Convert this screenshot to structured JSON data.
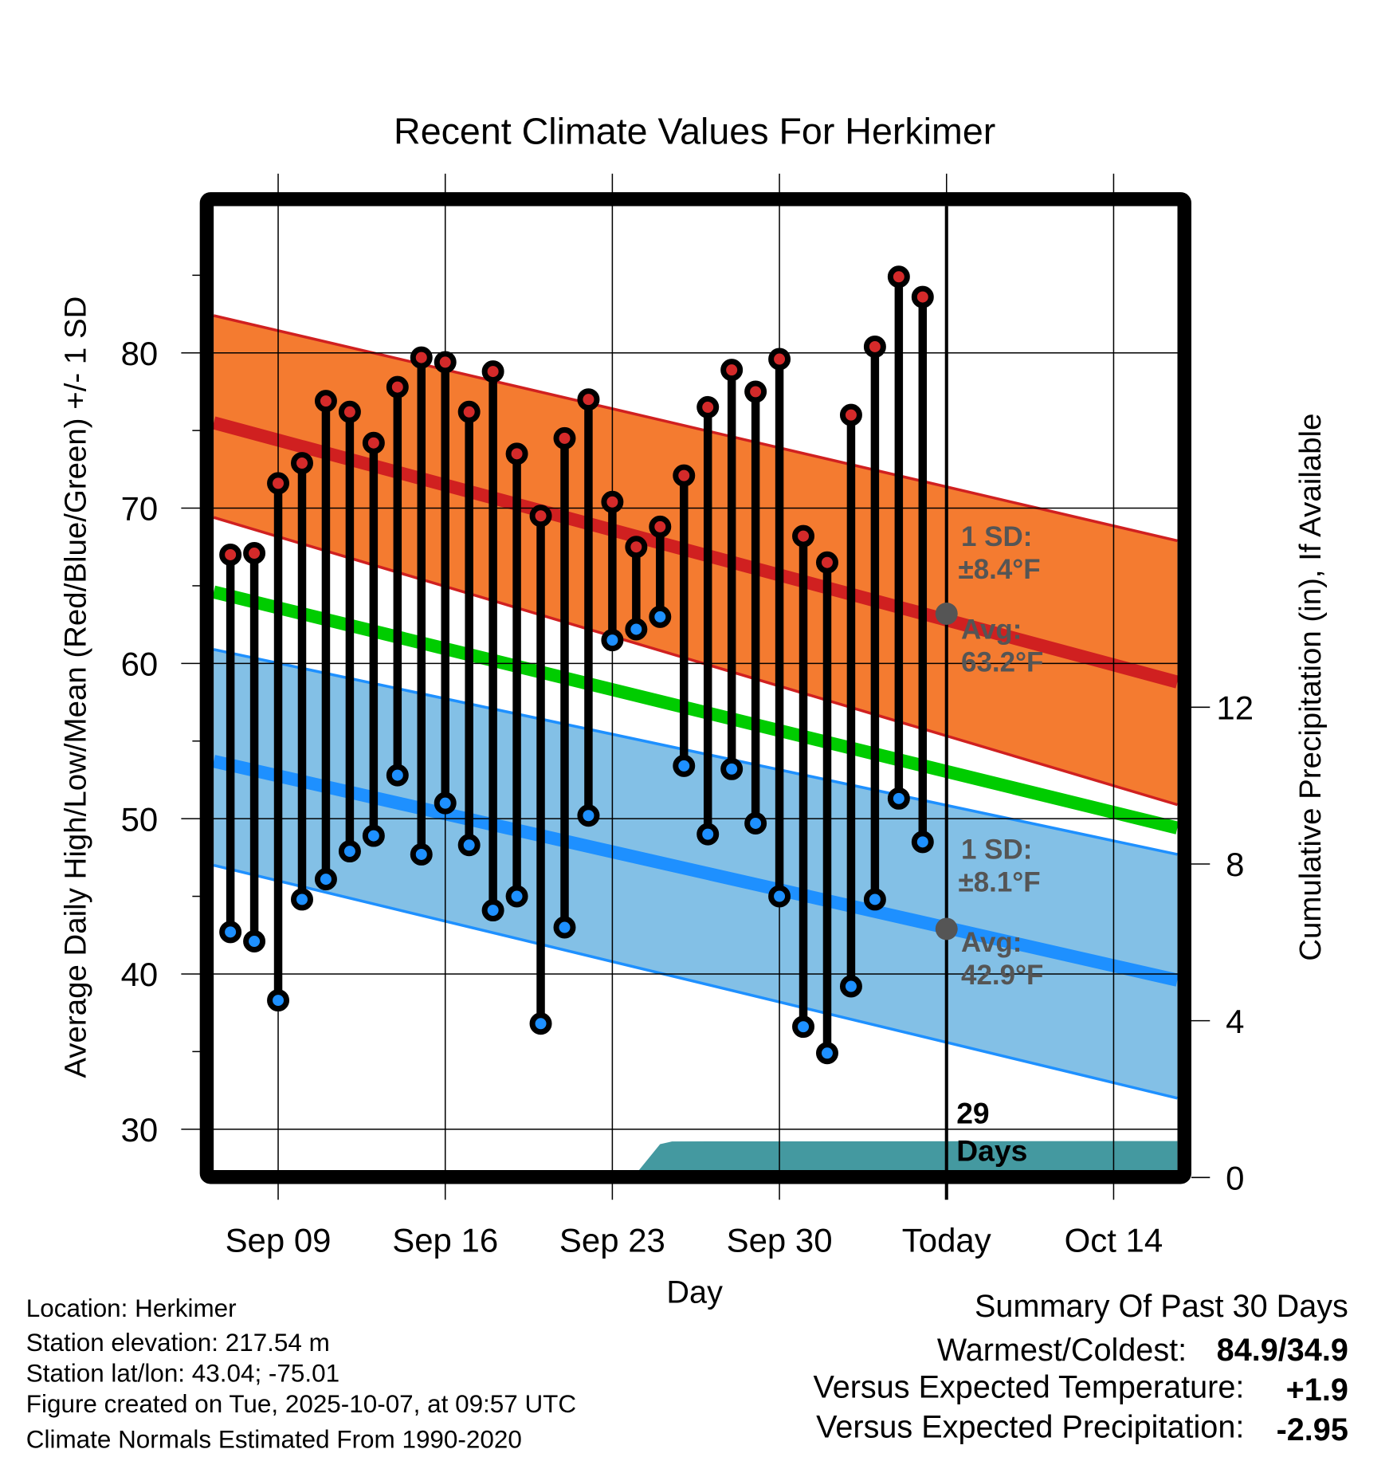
{
  "chart_data": {
    "type": "line",
    "title": "Recent Climate Values For Herkimer",
    "xlabel": "Day",
    "ylabel": "Average Daily High/Low/Mean (Red/Blue/Green) +/- 1 SD",
    "y2label": "Cumulative Precipitation (in), If Available",
    "ylim": [
      27.25,
      89.45
    ],
    "y2lim": [
      0,
      24.6
    ],
    "xlim_days": [
      -0.7,
      39.67
    ],
    "x_origin": "Sep 07",
    "x_ticks": [
      {
        "day": 2,
        "label": "Sep 09"
      },
      {
        "day": 9,
        "label": "Sep 16"
      },
      {
        "day": 16,
        "label": "Sep 23"
      },
      {
        "day": 23,
        "label": "Sep 30"
      },
      {
        "day": 30,
        "label": "Today"
      },
      {
        "day": 37,
        "label": "Oct 14"
      }
    ],
    "y_ticks": [
      30,
      40,
      50,
      60,
      70,
      80
    ],
    "y2_ticks": [
      0,
      4,
      8,
      12
    ],
    "dates": [
      "Sep 07",
      "Sep 08",
      "Sep 09",
      "Sep 10",
      "Sep 11",
      "Sep 12",
      "Sep 13",
      "Sep 14",
      "Sep 15",
      "Sep 16",
      "Sep 17",
      "Sep 18",
      "Sep 19",
      "Sep 20",
      "Sep 21",
      "Sep 22",
      "Sep 23",
      "Sep 24",
      "Sep 25",
      "Sep 26",
      "Sep 27",
      "Sep 28",
      "Sep 29",
      "Sep 30",
      "Oct 01",
      "Oct 02",
      "Oct 03",
      "Oct 04",
      "Oct 05",
      "Oct 06"
    ],
    "series": [
      {
        "name": "Daily High",
        "color": "#D42A2A",
        "values": [
          67.0,
          67.1,
          71.6,
          72.9,
          76.9,
          76.2,
          74.2,
          77.8,
          79.7,
          79.4,
          76.2,
          78.8,
          73.5,
          69.5,
          74.5,
          77.0,
          70.4,
          67.5,
          68.8,
          72.1,
          76.5,
          78.9,
          77.5,
          79.6,
          68.2,
          66.5,
          76.0,
          80.4,
          84.9,
          83.6
        ]
      },
      {
        "name": "Daily Low",
        "color": "#1E90FF",
        "values": [
          42.7,
          42.1,
          38.3,
          44.8,
          46.1,
          47.9,
          48.9,
          52.8,
          47.7,
          51.0,
          48.3,
          44.1,
          45.0,
          36.8,
          43.0,
          50.2,
          61.5,
          62.2,
          63.0,
          53.4,
          49.0,
          53.2,
          49.7,
          45.0,
          36.6,
          34.9,
          39.2,
          44.8,
          51.3,
          48.5
        ]
      }
    ],
    "normals": {
      "x_days": [
        -0.7,
        39.67
      ],
      "high_avg": [
        75.5,
        58.8
      ],
      "high_upper": [
        82.4,
        67.9
      ],
      "high_lower": [
        69.4,
        50.9
      ],
      "mean_avg": [
        64.6,
        49.4
      ],
      "low_avg": [
        53.7,
        39.6
      ],
      "low_upper": [
        60.9,
        47.7
      ],
      "low_lower": [
        47.0,
        32.0
      ]
    },
    "precip": {
      "x_days": [
        -0.7,
        16,
        17,
        18,
        18.5,
        39.67
      ],
      "values": [
        0,
        0,
        0.1,
        0.85,
        0.92,
        0.93
      ]
    },
    "colors": {
      "high_band": "#F47B30",
      "high_line": "#D02020",
      "mean_line": "#00CC00",
      "low_band": "#83C0E6",
      "low_line": "#1E90FF",
      "precip": "#4499A0"
    },
    "annotations": {
      "high_sd_line1": "1 SD:",
      "high_sd_line2": "±8.4°F",
      "high_avg_line1": "Avg:",
      "high_avg_line2": "63.2°F",
      "low_sd_line1": "1 SD:",
      "low_sd_line2": "±8.1°F",
      "low_avg_line1": "Avg:",
      "low_avg_line2": "42.9°F",
      "days_line1": "29",
      "days_line2": "Days",
      "today_high_avg": 63.2,
      "today_low_avg": 42.9
    }
  },
  "footer": {
    "location": "Location: Herkimer",
    "elevation": "Station elevation: 217.54 m",
    "latlon": "Station lat/lon: 43.04; -75.01",
    "created": "Figure created on Tue, 2025-10-07, at 09:57 UTC",
    "normals": "Climate Normals Estimated From 1990-2020"
  },
  "summary": {
    "title": "Summary Of Past 30 Days",
    "warm_label": "Warmest/Coldest:",
    "warm_value": "84.9/34.9",
    "temp_label": "Versus Expected Temperature:",
    "temp_value": "+1.9",
    "temp_color": "#D42A2A",
    "precip_label": "Versus Expected Precipitation:",
    "precip_value": "-2.95",
    "precip_color": "#A0522D"
  }
}
